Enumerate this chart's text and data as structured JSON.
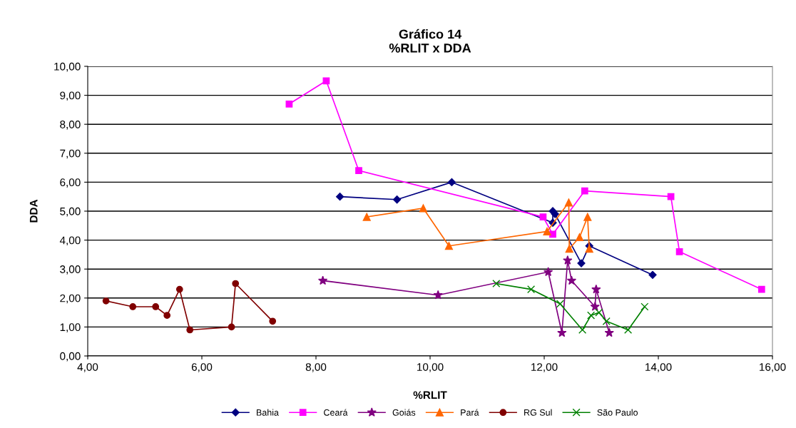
{
  "chart_data": {
    "type": "line",
    "title": "Gráfico 14\n%RLIT x DDA",
    "xlabel": "%RLIT",
    "ylabel": "DDA",
    "series": [
      {
        "name": "Bahia",
        "color": "#000080",
        "marker": "diamond",
        "x": [
          8.42,
          9.42,
          10.38,
          12.15,
          12.15,
          12.19,
          12.65,
          12.79,
          13.9
        ],
        "values": [
          5.5,
          5.4,
          6.0,
          4.6,
          5.0,
          4.9,
          3.2,
          3.8,
          2.8
        ]
      },
      {
        "name": "Ceará",
        "color": "#ff00ff",
        "marker": "square",
        "x": [
          7.53,
          8.18,
          8.75,
          11.98,
          12.15,
          12.71,
          14.22,
          14.37,
          15.81
        ],
        "values": [
          8.7,
          9.5,
          6.4,
          4.8,
          4.2,
          5.7,
          5.5,
          3.6,
          2.3
        ]
      },
      {
        "name": "Goiás",
        "color": "#800080",
        "marker": "star",
        "x": [
          8.12,
          10.14,
          12.07,
          12.31,
          12.41,
          12.48,
          12.89,
          12.91,
          13.14
        ],
        "values": [
          2.6,
          2.1,
          2.9,
          0.8,
          3.3,
          2.6,
          1.7,
          2.3,
          0.8
        ]
      },
      {
        "name": "Pará",
        "color": "#ff6600",
        "marker": "triangle",
        "x": [
          8.89,
          9.88,
          10.33,
          12.05,
          12.43,
          12.44,
          12.62,
          12.76,
          12.79
        ],
        "values": [
          4.8,
          5.1,
          3.8,
          4.3,
          5.3,
          3.7,
          4.1,
          4.8,
          3.7
        ]
      },
      {
        "name": "RG Sul",
        "color": "#800000",
        "marker": "circle",
        "x": [
          4.32,
          4.79,
          5.19,
          5.39,
          5.61,
          5.79,
          6.52,
          6.59,
          7.24
        ],
        "values": [
          1.9,
          1.7,
          1.7,
          1.4,
          2.3,
          0.9,
          1.0,
          2.5,
          1.2
        ]
      },
      {
        "name": "São Paulo",
        "color": "#008000",
        "marker": "cross",
        "x": [
          11.16,
          11.77,
          12.28,
          12.67,
          12.82,
          12.96,
          13.09,
          13.47,
          13.76
        ],
        "values": [
          2.5,
          2.3,
          1.8,
          0.9,
          1.4,
          1.5,
          1.2,
          0.9,
          1.7
        ]
      }
    ],
    "xlim": [
      4,
      16
    ],
    "xticks": [
      {
        "value": 4,
        "label": "4,00"
      },
      {
        "value": 6,
        "label": "6,00"
      },
      {
        "value": 8,
        "label": "8,00"
      },
      {
        "value": 10,
        "label": "10,00"
      },
      {
        "value": 12,
        "label": "12,00"
      },
      {
        "value": 14,
        "label": "14,00"
      },
      {
        "value": 16,
        "label": "16,00"
      }
    ],
    "ylim": [
      0,
      10
    ],
    "yticks": [
      {
        "value": 0,
        "label": "0,00"
      },
      {
        "value": 1,
        "label": "1,00"
      },
      {
        "value": 2,
        "label": "2,00"
      },
      {
        "value": 3,
        "label": "3,00"
      },
      {
        "value": 4,
        "label": "4,00"
      },
      {
        "value": 5,
        "label": "5,00"
      },
      {
        "value": 6,
        "label": "6,00"
      },
      {
        "value": 7,
        "label": "7,00"
      },
      {
        "value": 8,
        "label": "8,00"
      },
      {
        "value": 9,
        "label": "9,00"
      },
      {
        "value": 10,
        "label": "10,00"
      }
    ],
    "grid": "y",
    "legend": "bottom",
    "line_style": "solid"
  }
}
